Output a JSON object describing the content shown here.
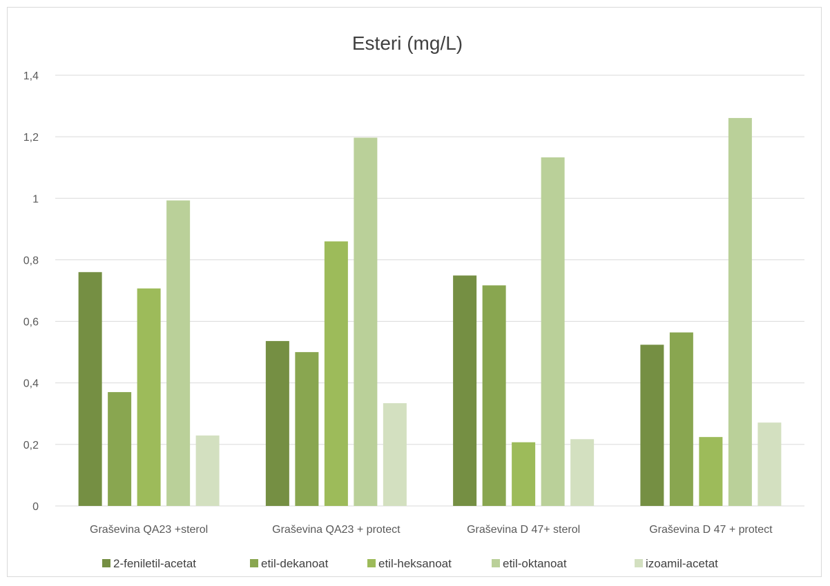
{
  "chart_data": {
    "type": "bar",
    "title": "Esteri (mg/L)",
    "xlabel": "",
    "ylabel": "",
    "ylim": [
      0,
      1.4
    ],
    "yticks": [
      "0",
      "0,2",
      "0,4",
      "0,6",
      "0,8",
      "1",
      "1,2",
      "1,4"
    ],
    "grid": true,
    "legend_position": "bottom",
    "categories": [
      "Graševina QA23 +sterol",
      "Graševina QA23 + protect",
      "Graševina D 47+ sterol",
      "Graševina D 47 + protect"
    ],
    "series": [
      {
        "name": "2-feniletil-acetat",
        "color": "#758f43",
        "values": [
          0.76,
          0.536,
          0.749,
          0.524
        ]
      },
      {
        "name": "etil-dekanoat",
        "color": "#89a650",
        "values": [
          0.37,
          0.5,
          0.717,
          0.564
        ]
      },
      {
        "name": "etil-heksanoat",
        "color": "#9dbb5a",
        "values": [
          0.707,
          0.86,
          0.207,
          0.224
        ]
      },
      {
        "name": "etil-oktanoat",
        "color": "#bad099",
        "values": [
          0.993,
          1.197,
          1.133,
          1.261
        ]
      },
      {
        "name": "izoamil-acetat",
        "color": "#d3e0c0",
        "values": [
          0.229,
          0.334,
          0.217,
          0.271
        ]
      }
    ]
  }
}
